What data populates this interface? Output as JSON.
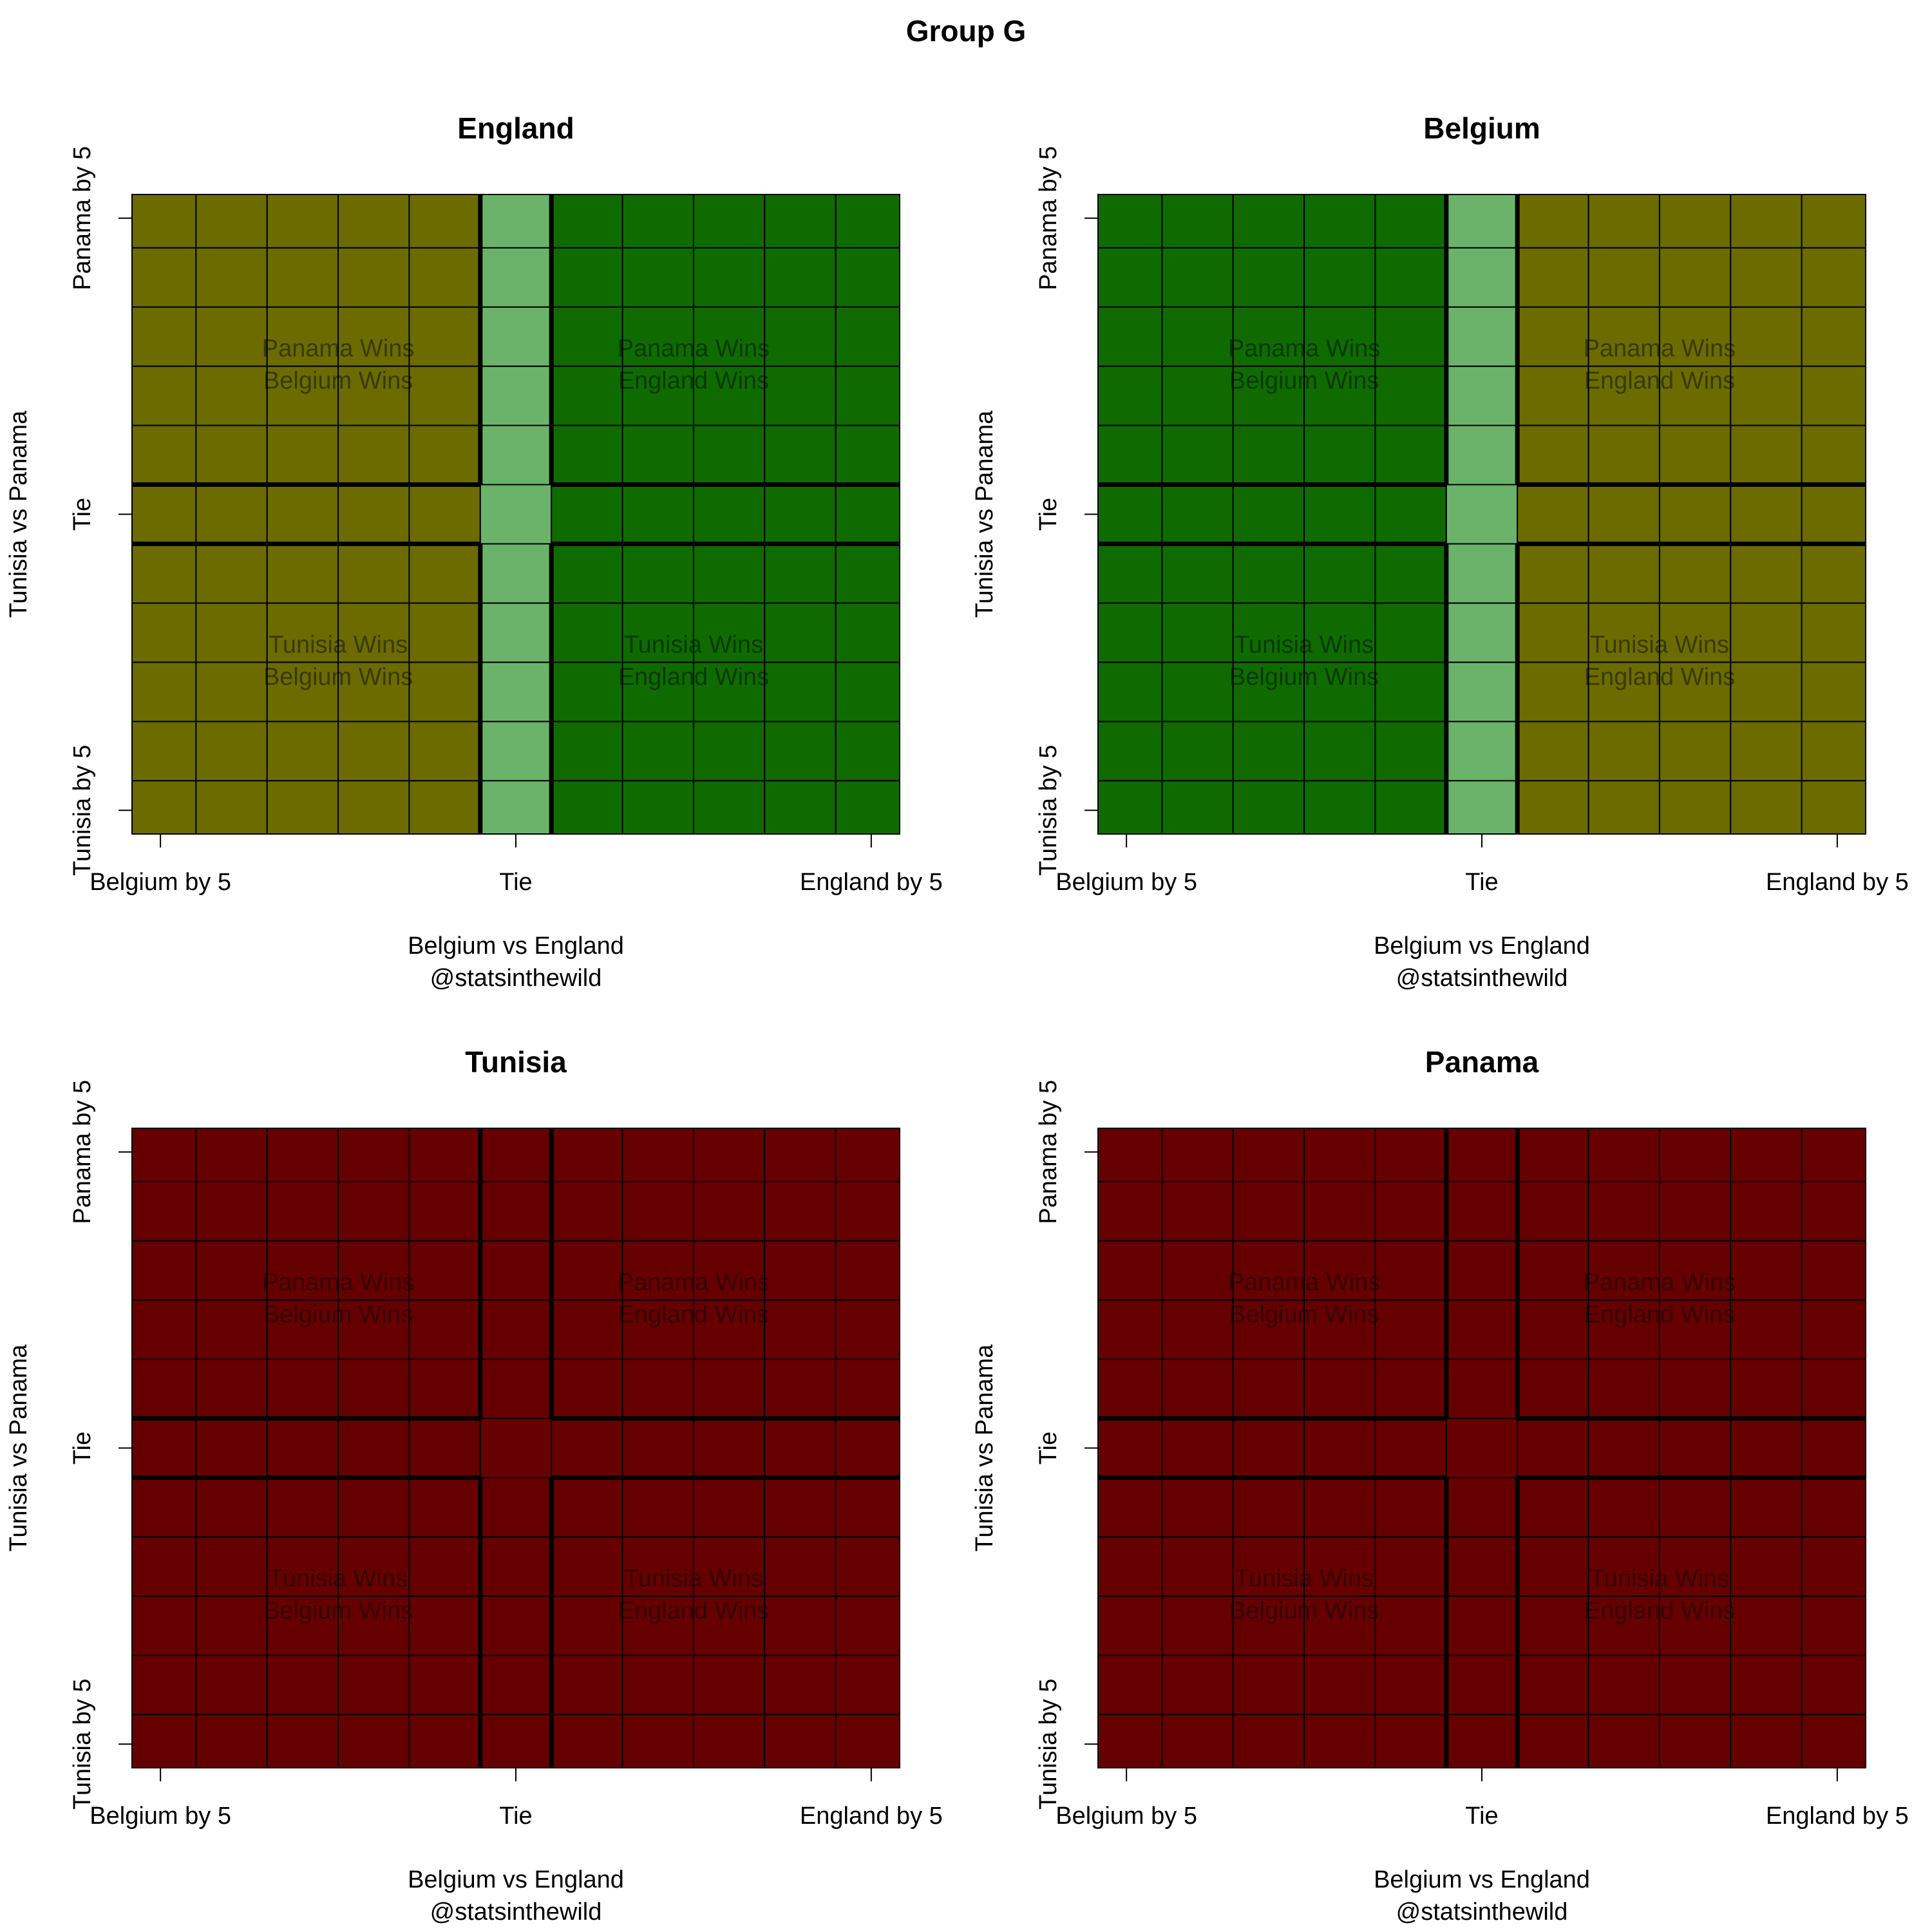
{
  "title": "Group G",
  "chart_data": [
    {
      "type": "heatmap",
      "title": "England",
      "xlabel": "Belgium vs England",
      "caption": "@statsinthewild",
      "ylabel": "Tunisia vs Panama",
      "xlim": [
        -5.4,
        5.4
      ],
      "ylim": [
        -5.4,
        5.4
      ],
      "xticks": [
        {
          "value": -5,
          "label": "Belgium by 5"
        },
        {
          "value": 0,
          "label": "Tie"
        },
        {
          "value": 5,
          "label": "England by 5"
        }
      ],
      "yticks": [
        {
          "value": -5,
          "label": "Tunisia by 5"
        },
        {
          "value": 0,
          "label": "Tie"
        },
        {
          "value": 5,
          "label": "Panama by 5"
        }
      ],
      "x": [
        -5,
        -4,
        -3,
        -2,
        -1,
        0,
        1,
        2,
        3,
        4,
        5
      ],
      "y": [
        -5,
        -4,
        -3,
        -2,
        -1,
        0,
        1,
        2,
        3,
        4,
        5
      ],
      "colors": [
        "#6b6b00",
        "#6b6b00",
        "#6b6b00",
        "#6b6b00",
        "#6b6b00",
        "#6bb36b",
        "#0f6b00",
        "#0f6b00",
        "#0f6b00",
        "#0f6b00",
        "#0f6b00"
      ],
      "annotations": [
        [
          "Panama Wins",
          "Belgium Wins"
        ],
        [
          "Panama Wins",
          "England Wins"
        ],
        [
          "Tunisia Wins",
          "Belgium Wins"
        ],
        [
          "Tunisia Wins",
          "England Wins"
        ]
      ]
    },
    {
      "type": "heatmap",
      "title": "Belgium",
      "xlabel": "Belgium vs England",
      "caption": "@statsinthewild",
      "ylabel": "Tunisia vs Panama",
      "xlim": [
        -5.4,
        5.4
      ],
      "ylim": [
        -5.4,
        5.4
      ],
      "xticks": [
        {
          "value": -5,
          "label": "Belgium by 5"
        },
        {
          "value": 0,
          "label": "Tie"
        },
        {
          "value": 5,
          "label": "England by 5"
        }
      ],
      "yticks": [
        {
          "value": -5,
          "label": "Tunisia by 5"
        },
        {
          "value": 0,
          "label": "Tie"
        },
        {
          "value": 5,
          "label": "Panama by 5"
        }
      ],
      "x": [
        -5,
        -4,
        -3,
        -2,
        -1,
        0,
        1,
        2,
        3,
        4,
        5
      ],
      "y": [
        -5,
        -4,
        -3,
        -2,
        -1,
        0,
        1,
        2,
        3,
        4,
        5
      ],
      "colors": [
        "#0f6b00",
        "#0f6b00",
        "#0f6b00",
        "#0f6b00",
        "#0f6b00",
        "#6bb36b",
        "#6b6b00",
        "#6b6b00",
        "#6b6b00",
        "#6b6b00",
        "#6b6b00"
      ],
      "annotations": [
        [
          "Panama Wins",
          "Belgium Wins"
        ],
        [
          "Panama Wins",
          "England Wins"
        ],
        [
          "Tunisia Wins",
          "Belgium Wins"
        ],
        [
          "Tunisia Wins",
          "England Wins"
        ]
      ]
    },
    {
      "type": "heatmap",
      "title": "Tunisia",
      "xlabel": "Belgium vs England",
      "caption": "@statsinthewild",
      "ylabel": "Tunisia vs Panama",
      "xlim": [
        -5.4,
        5.4
      ],
      "ylim": [
        -5.4,
        5.4
      ],
      "xticks": [
        {
          "value": -5,
          "label": "Belgium by 5"
        },
        {
          "value": 0,
          "label": "Tie"
        },
        {
          "value": 5,
          "label": "England by 5"
        }
      ],
      "yticks": [
        {
          "value": -5,
          "label": "Tunisia by 5"
        },
        {
          "value": 0,
          "label": "Tie"
        },
        {
          "value": 5,
          "label": "Panama by 5"
        }
      ],
      "x": [
        -5,
        -4,
        -3,
        -2,
        -1,
        0,
        1,
        2,
        3,
        4,
        5
      ],
      "y": [
        -5,
        -4,
        -3,
        -2,
        -1,
        0,
        1,
        2,
        3,
        4,
        5
      ],
      "colors": [
        "#660000",
        "#660000",
        "#660000",
        "#660000",
        "#660000",
        "#660000",
        "#660000",
        "#660000",
        "#660000",
        "#660000",
        "#660000"
      ],
      "annotations": [
        [
          "Panama Wins",
          "Belgium Wins"
        ],
        [
          "Panama Wins",
          "England Wins"
        ],
        [
          "Tunisia Wins",
          "Belgium Wins"
        ],
        [
          "Tunisia Wins",
          "England Wins"
        ]
      ]
    },
    {
      "type": "heatmap",
      "title": "Panama",
      "xlabel": "Belgium vs England",
      "caption": "@statsinthewild",
      "ylabel": "Tunisia vs Panama",
      "xlim": [
        -5.4,
        5.4
      ],
      "ylim": [
        -5.4,
        5.4
      ],
      "xticks": [
        {
          "value": -5,
          "label": "Belgium by 5"
        },
        {
          "value": 0,
          "label": "Tie"
        },
        {
          "value": 5,
          "label": "England by 5"
        }
      ],
      "yticks": [
        {
          "value": -5,
          "label": "Tunisia by 5"
        },
        {
          "value": 0,
          "label": "Tie"
        },
        {
          "value": 5,
          "label": "Panama by 5"
        }
      ],
      "x": [
        -5,
        -4,
        -3,
        -2,
        -1,
        0,
        1,
        2,
        3,
        4,
        5
      ],
      "y": [
        -5,
        -4,
        -3,
        -2,
        -1,
        0,
        1,
        2,
        3,
        4,
        5
      ],
      "colors": [
        "#660000",
        "#660000",
        "#660000",
        "#660000",
        "#660000",
        "#660000",
        "#660000",
        "#660000",
        "#660000",
        "#660000",
        "#660000"
      ],
      "annotations": [
        [
          "Panama Wins",
          "Belgium Wins"
        ],
        [
          "Panama Wins",
          "England Wins"
        ],
        [
          "Tunisia Wins",
          "Belgium Wins"
        ],
        [
          "Tunisia Wins",
          "England Wins"
        ]
      ]
    }
  ]
}
